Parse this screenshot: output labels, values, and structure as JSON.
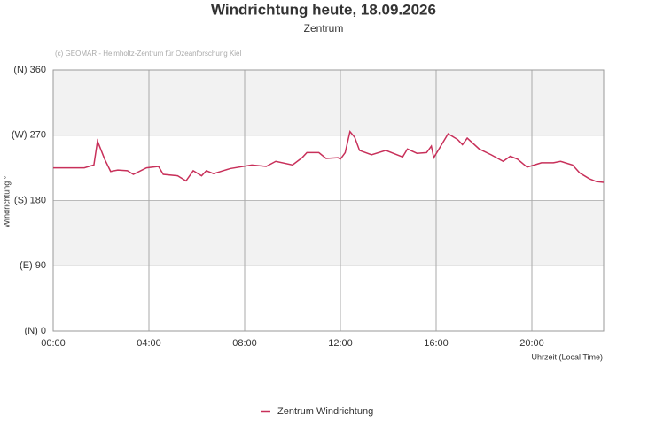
{
  "chart_data": {
    "type": "line",
    "title": "Windrichtung heute, 18.09.2026",
    "subtitle": "Zentrum",
    "credit": "(c) GEOMAR - Helmholtz-Zentrum für Ozeanforschung Kiel",
    "y_label": "Windrichtung °",
    "x_label": "Uhrzeit (Local Time)",
    "xlim": [
      0,
      23
    ],
    "xticks": [
      {
        "value": 0,
        "label": "00:00"
      },
      {
        "value": 4,
        "label": "04:00"
      },
      {
        "value": 8,
        "label": "08:00"
      },
      {
        "value": 12,
        "label": "12:00"
      },
      {
        "value": 16,
        "label": "16:00"
      },
      {
        "value": 20,
        "label": "20:00"
      }
    ],
    "ylim": [
      0,
      360
    ],
    "yticks": [
      {
        "value": 0,
        "label": "(N) 0"
      },
      {
        "value": 90,
        "label": "(E) 90"
      },
      {
        "value": 180,
        "label": "(S) 180"
      },
      {
        "value": 270,
        "label": "(W) 270"
      },
      {
        "value": 360,
        "label": "(N) 360"
      }
    ],
    "grid": true,
    "x": [
      0,
      1.2,
      1.3,
      1.7,
      1.85,
      2.15,
      2.4,
      2.7,
      3.1,
      3.35,
      3.9,
      4.4,
      4.6,
      5.2,
      5.55,
      5.85,
      6.2,
      6.4,
      6.7,
      7.4,
      8.3,
      8.9,
      9.3,
      10.0,
      10.4,
      10.6,
      11.1,
      11.4,
      11.9,
      12.0,
      12.2,
      12.4,
      12.6,
      12.8,
      13.3,
      13.9,
      14.6,
      14.8,
      15.2,
      15.6,
      15.8,
      15.9,
      16.5,
      16.9,
      17.1,
      17.3,
      17.8,
      18.3,
      18.8,
      19.1,
      19.4,
      19.8,
      20.1,
      20.4,
      20.9,
      21.2,
      21.7,
      22.0,
      22.4,
      22.7,
      23.0
    ],
    "series": [
      {
        "name": "Zentrum Windrichtung",
        "color": "#c8305a",
        "values": [
          225,
          225,
          225,
          229,
          262,
          237,
          220,
          222,
          221,
          216,
          225,
          227,
          216,
          214,
          207,
          221,
          214,
          221,
          217,
          224,
          229,
          227,
          234,
          229,
          239,
          246,
          246,
          238,
          239,
          237,
          246,
          275,
          267,
          249,
          243,
          249,
          240,
          251,
          245,
          246,
          255,
          239,
          272,
          264,
          257,
          266,
          251,
          243,
          234,
          241,
          237,
          226,
          229,
          232,
          232,
          234,
          229,
          218,
          210,
          206,
          205
        ]
      }
    ],
    "legend": "bottom"
  }
}
